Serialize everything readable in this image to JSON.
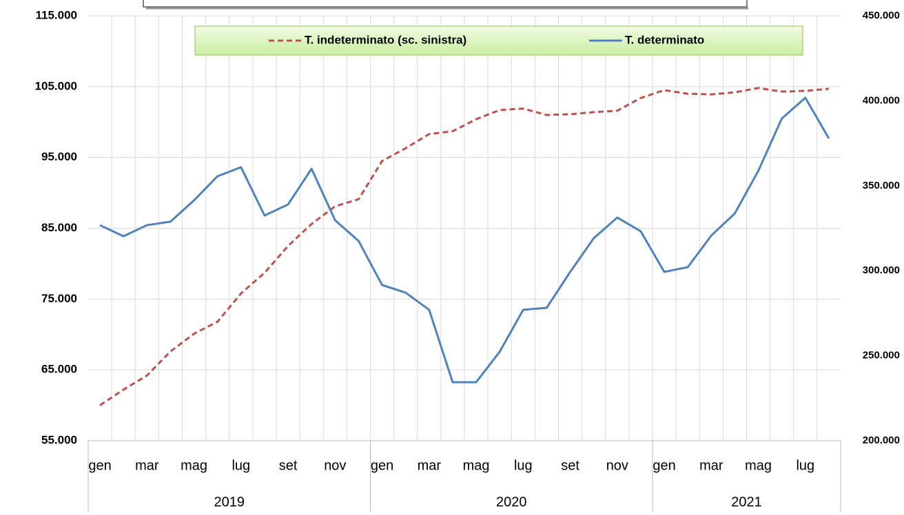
{
  "chart_data": {
    "type": "line",
    "categories": [
      "gen",
      null,
      "mar",
      null,
      "mag",
      null,
      "lug",
      null,
      "set",
      null,
      "nov",
      null,
      "gen",
      null,
      "mar",
      null,
      "mag",
      null,
      "lug",
      null,
      "set",
      null,
      "nov",
      null,
      "gen",
      null,
      "mar",
      null,
      "mag",
      null,
      "lug",
      null
    ],
    "year_groups": [
      {
        "label": "2019",
        "count": 12
      },
      {
        "label": "2020",
        "count": 12
      },
      {
        "label": "2021",
        "count": 8
      }
    ],
    "series": [
      {
        "name": "T. indeterminato (sc. sinistra)",
        "color": "#c0504d",
        "dashed": true,
        "values": [
          60000,
          62200,
          64200,
          67600,
          70100,
          71800,
          75800,
          78700,
          82500,
          85600,
          88100,
          89100,
          94500,
          96300,
          98300,
          98700,
          100400,
          101700,
          101900,
          101000,
          101100,
          101400,
          101600,
          103400,
          104500,
          104000,
          103900,
          104200,
          104800,
          104300,
          104400,
          104700
        ]
      },
      {
        "name": "T. determinato",
        "color": "#4f81bd",
        "axis": "y2",
        "values": [
          326800,
          320300,
          326800,
          328900,
          341400,
          355600,
          360900,
          332500,
          339000,
          360000,
          329700,
          317500,
          291600,
          287100,
          277000,
          234400,
          234400,
          252300,
          277000,
          278200,
          299300,
          319100,
          331300,
          323200,
          299300,
          302100,
          320700,
          333700,
          358800,
          389600,
          401800,
          377900
        ]
      }
    ],
    "ylim": [
      55000,
      115000
    ],
    "yticks": [
      {
        "value": 55000,
        "label": "55.000"
      },
      {
        "value": 65000,
        "label": "65.000"
      },
      {
        "value": 75000,
        "label": "75.000"
      },
      {
        "value": 85000,
        "label": "85.000"
      },
      {
        "value": 95000,
        "label": "95.000"
      },
      {
        "value": 105000,
        "label": "105.000"
      },
      {
        "value": 115000,
        "label": "115.000"
      }
    ],
    "y2lim": [
      200000,
      450000
    ],
    "y2ticks": [
      {
        "value": 200000,
        "label": "200.000"
      },
      {
        "value": 250000,
        "label": "250.000"
      },
      {
        "value": 300000,
        "label": "300.000"
      },
      {
        "value": 350000,
        "label": "350.000"
      },
      {
        "value": 400000,
        "label": "400.000"
      },
      {
        "value": 450000,
        "label": "450.000"
      }
    ],
    "grid": true,
    "legend": "top"
  }
}
